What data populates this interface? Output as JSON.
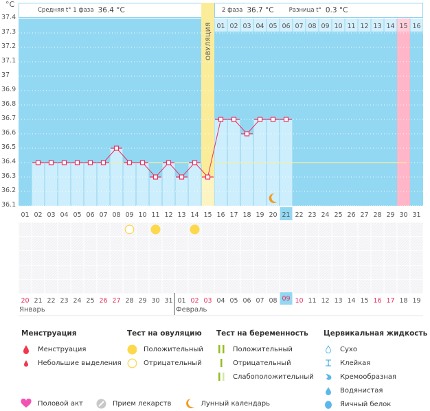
{
  "header": {
    "unit": "°C",
    "phase1_label": "Средняя t° 1 фаза",
    "phase1_value": "36.4 °C",
    "phase2_label": "2 фаза",
    "phase2_value": "36.7 °C",
    "diff_label": "Разница t°",
    "diff_value": "0.3 °C",
    "ovulation_label": "ОВУЛЯЦИЯ"
  },
  "colors": {
    "chart_bg": "#93d8f2",
    "bar_fill": "#cdeefc",
    "line": "#e8305f",
    "coverline": "#f7ef9a",
    "ovulation": "#fbec9a",
    "highlight_pink": "#ffb6c8",
    "today": "#93d8f2",
    "weekend": "#e8305f",
    "ovulation_test": "#fdd84b",
    "moon": "#f29a1e"
  },
  "chart_data": {
    "type": "line",
    "title": "",
    "xlabel": "",
    "ylabel": "°C",
    "ylim": [
      36.1,
      37.4
    ],
    "yticks": [
      "37.4",
      "37.3",
      "37.2",
      "37.1",
      "37",
      "36.9",
      "36.8",
      "36.7",
      "36.6",
      "36.5",
      "36.4",
      "36.3",
      "36.2",
      "36.1"
    ],
    "cycle_days": [
      "01",
      "02",
      "03",
      "04",
      "05",
      "06",
      "07",
      "08",
      "09",
      "10",
      "11",
      "12",
      "13",
      "14",
      "15",
      "16",
      "17",
      "18",
      "19",
      "20",
      "21",
      "22",
      "23",
      "24",
      "25",
      "26",
      "27",
      "28",
      "29",
      "30",
      "31"
    ],
    "series": [
      {
        "name": "Базальная температура",
        "values": [
          null,
          36.4,
          36.4,
          36.4,
          36.4,
          36.4,
          36.4,
          36.5,
          36.4,
          36.4,
          36.3,
          36.4,
          36.3,
          36.4,
          36.3,
          36.7,
          36.7,
          36.6,
          36.7,
          36.7,
          36.7,
          null,
          null,
          null,
          null,
          null,
          null,
          null,
          null,
          null,
          null
        ]
      }
    ],
    "coverline": 36.4,
    "ovulation_day": 15,
    "highlight_day": 30,
    "today_cycle_day": 21,
    "phase2_day_labels": [
      "01",
      "02",
      "03",
      "04",
      "05",
      "06",
      "07",
      "08",
      "09",
      "10",
      "11",
      "12",
      "13",
      "14",
      "15",
      "16"
    ],
    "phase2_highlight_label": "15",
    "moon_day": 20
  },
  "calendar": {
    "dates": [
      "20",
      "21",
      "22",
      "23",
      "24",
      "25",
      "26",
      "27",
      "28",
      "29",
      "30",
      "31",
      "01",
      "02",
      "03",
      "04",
      "05",
      "06",
      "07",
      "08",
      "09",
      "10",
      "11",
      "12",
      "13",
      "14",
      "15",
      "16",
      "17",
      "18",
      "19"
    ],
    "weekend_indexes": [
      0,
      6,
      7,
      13,
      14,
      20,
      21,
      27,
      28
    ],
    "today_index": 20,
    "months": [
      {
        "label": "Январь",
        "start_index": 0
      },
      {
        "label": "Февраль",
        "start_index": 12
      }
    ],
    "ovulation_tests": [
      {
        "day_index": 8,
        "result": "negative"
      },
      {
        "day_index": 10,
        "result": "positive"
      },
      {
        "day_index": 13,
        "result": "positive"
      }
    ]
  },
  "legend": {
    "menstruation": {
      "title": "Менструация",
      "items": [
        {
          "icon": "drop-large-icon",
          "label": "Менструация"
        },
        {
          "icon": "drop-small-icon",
          "label": "Небольшие выделения"
        }
      ]
    },
    "ovulation_test": {
      "title": "Тест на овуляцию",
      "items": [
        {
          "icon": "circle-filled-icon",
          "label": "Положительный"
        },
        {
          "icon": "circle-outline-icon",
          "label": "Отрицательный"
        }
      ]
    },
    "pregnancy_test": {
      "title": "Тест на беременность",
      "items": [
        {
          "icon": "two-lines-icon",
          "label": "Положительный"
        },
        {
          "icon": "one-line-icon",
          "label": "Отрицательный"
        },
        {
          "icon": "faint-lines-icon",
          "label": "Слабоположительный"
        }
      ]
    },
    "cervical_fluid": {
      "title": "Цервикальная жидкость",
      "items": [
        {
          "icon": "dry-icon",
          "label": "Сухо"
        },
        {
          "icon": "sticky-icon",
          "label": "Клейкая"
        },
        {
          "icon": "creamy-icon",
          "label": "Кремообразная"
        },
        {
          "icon": "watery-icon",
          "label": "Водянистая"
        },
        {
          "icon": "eggwhite-icon",
          "label": "Яичный белок"
        }
      ]
    },
    "other": [
      {
        "icon": "heart-icon",
        "label": "Половой акт"
      },
      {
        "icon": "pill-icon",
        "label": "Прием лекарств"
      },
      {
        "icon": "moon-icon",
        "label": "Лунный календарь"
      }
    ]
  }
}
